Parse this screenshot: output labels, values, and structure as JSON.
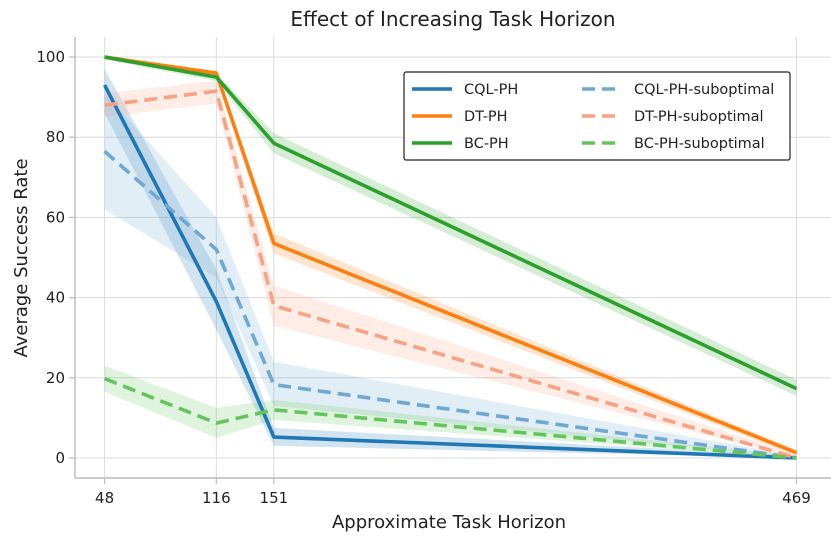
{
  "chart_data": {
    "type": "line",
    "title": "Effect of Increasing Task Horizon",
    "xlabel": "Approximate Task Horizon",
    "ylabel": "Average Success Rate",
    "x": [
      48,
      116,
      151,
      469
    ],
    "xticks": [
      "48",
      "116",
      "151",
      "469"
    ],
    "yticks": [
      0,
      20,
      40,
      60,
      80,
      100
    ],
    "xlim": [
      30,
      490
    ],
    "ylim": [
      -5,
      105
    ],
    "grid": true,
    "legend_position": "top-right",
    "series": [
      {
        "name": "CQL-PH",
        "color": "#1f77b4",
        "style": "solid",
        "values": [
          93,
          39,
          5.2,
          0
        ],
        "lower": [
          86,
          32,
          3,
          0
        ],
        "upper": [
          97,
          47,
          7.5,
          0.5
        ]
      },
      {
        "name": "DT-PH",
        "color": "#ff7f0e",
        "style": "solid",
        "values": [
          100,
          96,
          53.5,
          1.3
        ],
        "lower": [
          99.5,
          95,
          51,
          0.5
        ],
        "upper": [
          100,
          96.5,
          56,
          2
        ]
      },
      {
        "name": "BC-PH",
        "color": "#2ca02c",
        "style": "solid",
        "values": [
          100,
          95,
          78.5,
          17.3
        ],
        "lower": [
          99.5,
          94,
          76,
          15.5
        ],
        "upper": [
          100,
          96,
          81,
          19.5
        ]
      },
      {
        "name": "CQL-PH-suboptimal",
        "color": "#6fa8d3",
        "style": "dashed",
        "values": [
          76.5,
          52,
          18.3,
          0
        ],
        "lower": [
          62,
          45,
          13,
          0
        ],
        "upper": [
          91,
          60,
          24,
          0.5
        ]
      },
      {
        "name": "DT-PH-suboptimal",
        "color": "#f9a183",
        "style": "dashed",
        "values": [
          88,
          91.5,
          38,
          0
        ],
        "lower": [
          85,
          88.5,
          33,
          0
        ],
        "upper": [
          91,
          94,
          43,
          0.8
        ]
      },
      {
        "name": "BC-PH-suboptimal",
        "color": "#63c55c",
        "style": "dashed",
        "values": [
          19.8,
          8.7,
          12,
          0
        ],
        "lower": [
          16.5,
          5,
          9.5,
          0
        ],
        "upper": [
          23,
          12.5,
          14.5,
          0.5
        ]
      }
    ]
  }
}
